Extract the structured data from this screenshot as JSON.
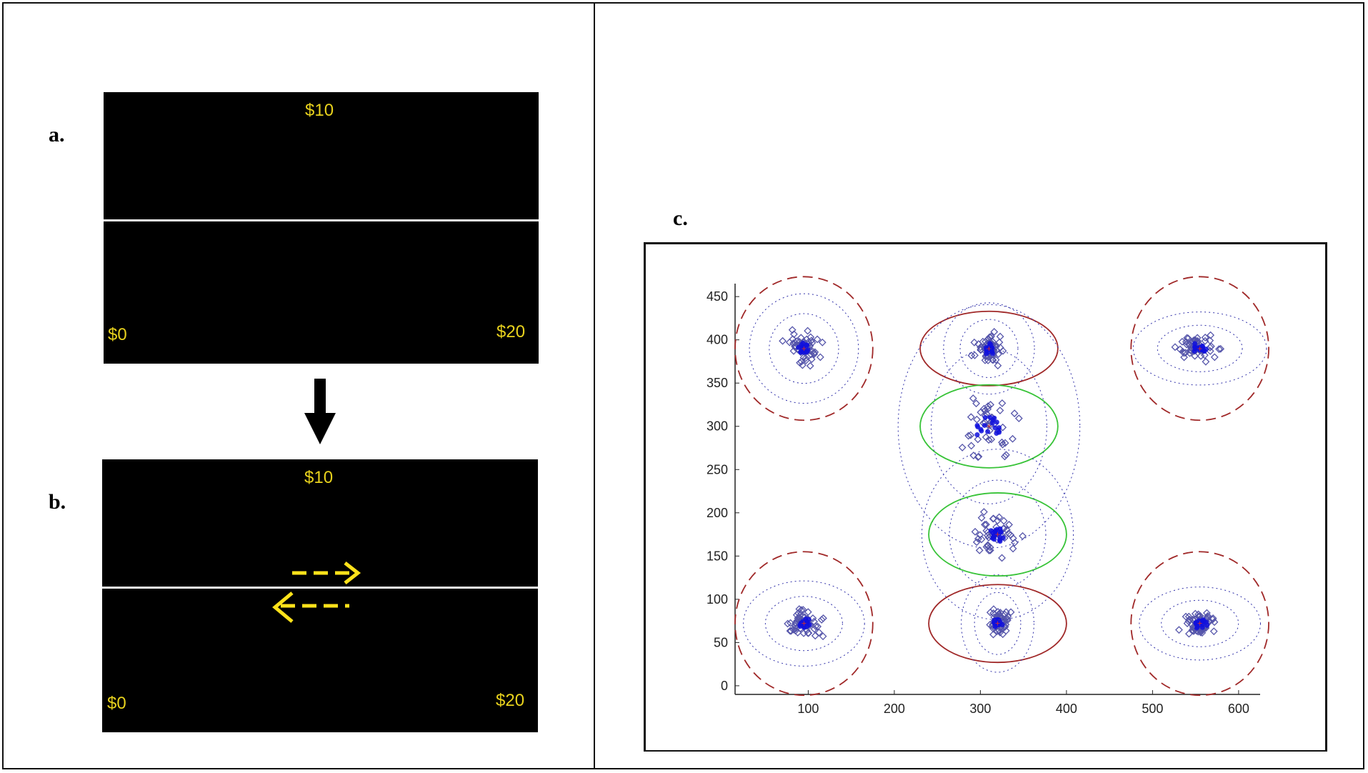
{
  "panels": {
    "a": {
      "label": "a.",
      "top_value": "$10",
      "left_value": "$0",
      "right_value": "$20"
    },
    "b": {
      "label": "b.",
      "top_value": "$10",
      "left_value": "$0",
      "right_value": "$20"
    },
    "c": {
      "label": "c."
    }
  },
  "colors": {
    "screen_bg": "#000000",
    "screen_text": "#e8d21d",
    "arrow_yellow": "#ffe21a",
    "point_blue": "#5555aa",
    "center_blue": "#1010dd",
    "red_ellipse": "#a02828",
    "green_ellipse": "#37c337",
    "dotted_blue": "#3333aa"
  },
  "chart_data": {
    "type": "scatter",
    "title": "",
    "xlabel": "",
    "ylabel": "",
    "xlim": [
      15,
      625
    ],
    "ylim": [
      -10,
      465
    ],
    "xticks": [
      100,
      200,
      300,
      400,
      500,
      600
    ],
    "yticks": [
      0,
      50,
      100,
      150,
      200,
      250,
      300,
      350,
      400,
      450
    ],
    "grid": false,
    "clusters": [
      {
        "center": [
          95,
          390
        ],
        "ellipse": {
          "rx": 80,
          "ry": 83,
          "style": "dashed",
          "color": "red"
        },
        "spread": [
          18,
          18
        ],
        "n": 55
      },
      {
        "center": [
          310,
          390
        ],
        "ellipse": {
          "rx": 80,
          "ry": 43,
          "style": "solid",
          "color": "red"
        },
        "spread": [
          15,
          15
        ],
        "n": 55
      },
      {
        "center": [
          555,
          390
        ],
        "ellipse": {
          "rx": 80,
          "ry": 83,
          "style": "dashed",
          "color": "red"
        },
        "spread": [
          22,
          12
        ],
        "n": 55
      },
      {
        "center": [
          95,
          72
        ],
        "ellipse": {
          "rx": 80,
          "ry": 83,
          "style": "dashed",
          "color": "red"
        },
        "spread": [
          20,
          14
        ],
        "n": 55
      },
      {
        "center": [
          320,
          72
        ],
        "ellipse": {
          "rx": 80,
          "ry": 45,
          "style": "solid",
          "color": "red"
        },
        "spread": [
          12,
          16
        ],
        "n": 55
      },
      {
        "center": [
          555,
          72
        ],
        "ellipse": {
          "rx": 80,
          "ry": 83,
          "style": "dashed",
          "color": "red"
        },
        "spread": [
          20,
          12
        ],
        "n": 55
      },
      {
        "center": [
          310,
          300
        ],
        "ellipse": {
          "rx": 80,
          "ry": 48,
          "style": "solid",
          "color": "green"
        },
        "spread": [
          30,
          40
        ],
        "n": 45
      },
      {
        "center": [
          320,
          175
        ],
        "ellipse": {
          "rx": 80,
          "ry": 48,
          "style": "solid",
          "color": "green"
        },
        "spread": [
          25,
          28
        ],
        "n": 45
      }
    ]
  }
}
